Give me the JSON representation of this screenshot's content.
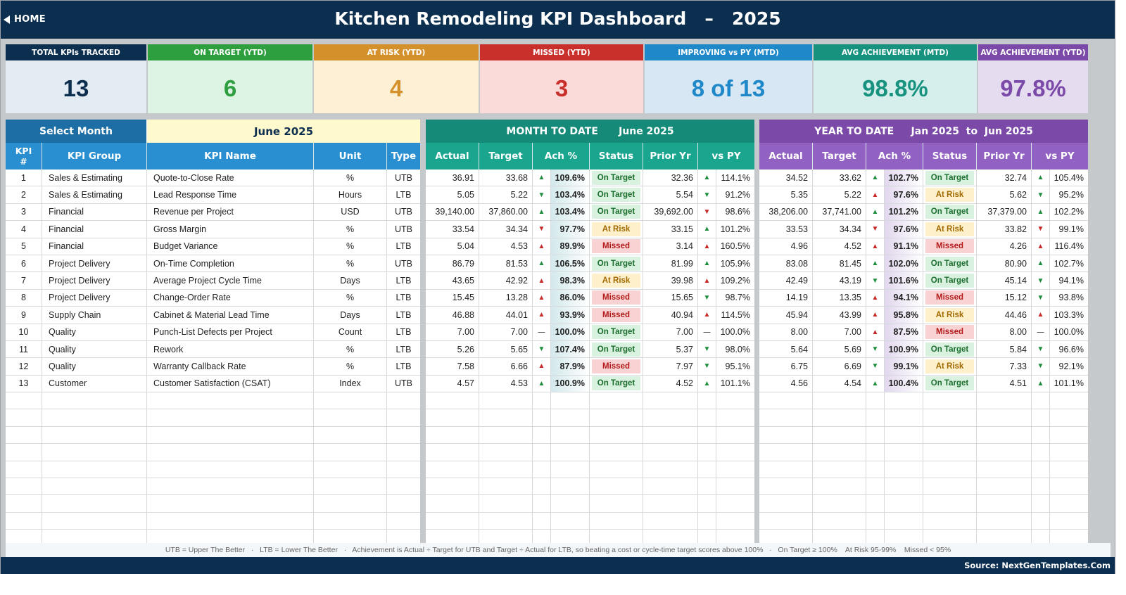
{
  "header": {
    "home_label": "HOME",
    "title": "Kitchen Remodeling KPI Dashboard   –   2025"
  },
  "cards": [
    {
      "label": "TOTAL KPIs TRACKED",
      "value": "13",
      "head": "#0d2f4f",
      "bg": "#e4ecf3",
      "fg": "#0d2f4f"
    },
    {
      "label": "ON TARGET (YTD)",
      "value": "6",
      "head": "#2e9f3e",
      "bg": "#ddf3e3",
      "fg": "#2e9f3e"
    },
    {
      "label": "AT RISK (YTD)",
      "value": "4",
      "head": "#d4902a",
      "bg": "#fdf0d4",
      "fg": "#d4902a"
    },
    {
      "label": "MISSED (YTD)",
      "value": "3",
      "head": "#c9302c",
      "bg": "#fbdada",
      "fg": "#c9302c"
    },
    {
      "label": "IMPROVING vs PY (MTD)",
      "value": "8 of 13",
      "head": "#1f88c9",
      "bg": "#d7e8f4",
      "fg": "#1f88c9"
    },
    {
      "label": "AVG ACHIEVEMENT (MTD)",
      "value": "98.8%",
      "head": "#16927f",
      "bg": "#d6efec",
      "fg": "#16927f"
    },
    {
      "label": "AVG ACHIEVEMENT (YTD)",
      "value": "97.8%",
      "head": "#7b4aa8",
      "bg": "#e6dcf0",
      "fg": "#7b4aa8"
    }
  ],
  "left": {
    "select_label": "Select Month",
    "month_value": "June 2025",
    "columns": [
      "KPI #",
      "KPI Group",
      "KPI Name",
      "Unit",
      "Type"
    ]
  },
  "mtd": {
    "title": "MONTH TO DATE      June 2025",
    "columns": [
      "Actual",
      "Target",
      "Ach %",
      "Status",
      "Prior Yr",
      "vs PY"
    ]
  },
  "ytd": {
    "title": "YEAR TO DATE     Jan 2025  to  Jun 2025",
    "columns": [
      "Actual",
      "Target",
      "Ach %",
      "Status",
      "Prior Yr",
      "vs PY"
    ]
  },
  "kpis": [
    {
      "n": "1",
      "group": "Sales & Estimating",
      "name": "Quote-to-Close Rate",
      "unit": "%",
      "type": "UTB",
      "mtd": {
        "actual": "36.91",
        "target": "33.68",
        "ach_dir": "up",
        "ach": "109.6%",
        "status": "On Target",
        "prior": "32.36",
        "vs_dir": "up",
        "vs": "114.1%"
      },
      "ytd": {
        "actual": "34.52",
        "target": "33.62",
        "ach_dir": "up",
        "ach": "102.7%",
        "status": "On Target",
        "prior": "32.74",
        "vs_dir": "up",
        "vs": "105.4%"
      }
    },
    {
      "n": "2",
      "group": "Sales & Estimating",
      "name": "Lead Response Time",
      "unit": "Hours",
      "type": "LTB",
      "mtd": {
        "actual": "5.05",
        "target": "5.22",
        "ach_dir": "down-good",
        "ach": "103.4%",
        "status": "On Target",
        "prior": "5.54",
        "vs_dir": "down-good",
        "vs": "91.2%"
      },
      "ytd": {
        "actual": "5.35",
        "target": "5.22",
        "ach_dir": "up-bad",
        "ach": "97.6%",
        "status": "At Risk",
        "prior": "5.62",
        "vs_dir": "down-good",
        "vs": "95.2%"
      }
    },
    {
      "n": "3",
      "group": "Financial",
      "name": "Revenue per Project",
      "unit": "USD",
      "type": "UTB",
      "mtd": {
        "actual": "39,140.00",
        "target": "37,860.00",
        "ach_dir": "up",
        "ach": "103.4%",
        "status": "On Target",
        "prior": "39,692.00",
        "vs_dir": "down-bad",
        "vs": "98.6%"
      },
      "ytd": {
        "actual": "38,206.00",
        "target": "37,741.00",
        "ach_dir": "up",
        "ach": "101.2%",
        "status": "On Target",
        "prior": "37,379.00",
        "vs_dir": "up",
        "vs": "102.2%"
      }
    },
    {
      "n": "4",
      "group": "Financial",
      "name": "Gross Margin",
      "unit": "%",
      "type": "UTB",
      "mtd": {
        "actual": "33.54",
        "target": "34.34",
        "ach_dir": "down-bad",
        "ach": "97.7%",
        "status": "At Risk",
        "prior": "33.15",
        "vs_dir": "up",
        "vs": "101.2%"
      },
      "ytd": {
        "actual": "33.53",
        "target": "34.34",
        "ach_dir": "down-bad",
        "ach": "97.6%",
        "status": "At Risk",
        "prior": "33.82",
        "vs_dir": "down-bad",
        "vs": "99.1%"
      }
    },
    {
      "n": "5",
      "group": "Financial",
      "name": "Budget Variance",
      "unit": "%",
      "type": "LTB",
      "mtd": {
        "actual": "5.04",
        "target": "4.53",
        "ach_dir": "up-bad",
        "ach": "89.9%",
        "status": "Missed",
        "prior": "3.14",
        "vs_dir": "up-bad",
        "vs": "160.5%"
      },
      "ytd": {
        "actual": "4.96",
        "target": "4.52",
        "ach_dir": "up-bad",
        "ach": "91.1%",
        "status": "Missed",
        "prior": "4.26",
        "vs_dir": "up-bad",
        "vs": "116.4%"
      }
    },
    {
      "n": "6",
      "group": "Project Delivery",
      "name": "On-Time Completion",
      "unit": "%",
      "type": "UTB",
      "mtd": {
        "actual": "86.79",
        "target": "81.53",
        "ach_dir": "up",
        "ach": "106.5%",
        "status": "On Target",
        "prior": "81.99",
        "vs_dir": "up",
        "vs": "105.9%"
      },
      "ytd": {
        "actual": "83.08",
        "target": "81.45",
        "ach_dir": "up",
        "ach": "102.0%",
        "status": "On Target",
        "prior": "80.90",
        "vs_dir": "up",
        "vs": "102.7%"
      }
    },
    {
      "n": "7",
      "group": "Project Delivery",
      "name": "Average Project Cycle Time",
      "unit": "Days",
      "type": "LTB",
      "mtd": {
        "actual": "43.65",
        "target": "42.92",
        "ach_dir": "up-bad",
        "ach": "98.3%",
        "status": "At Risk",
        "prior": "39.98",
        "vs_dir": "up-bad",
        "vs": "109.2%"
      },
      "ytd": {
        "actual": "42.49",
        "target": "43.19",
        "ach_dir": "down-good",
        "ach": "101.6%",
        "status": "On Target",
        "prior": "45.14",
        "vs_dir": "down-good",
        "vs": "94.1%"
      }
    },
    {
      "n": "8",
      "group": "Project Delivery",
      "name": "Change-Order Rate",
      "unit": "%",
      "type": "LTB",
      "mtd": {
        "actual": "15.45",
        "target": "13.28",
        "ach_dir": "up-bad",
        "ach": "86.0%",
        "status": "Missed",
        "prior": "15.65",
        "vs_dir": "down-good",
        "vs": "98.7%"
      },
      "ytd": {
        "actual": "14.19",
        "target": "13.35",
        "ach_dir": "up-bad",
        "ach": "94.1%",
        "status": "Missed",
        "prior": "15.12",
        "vs_dir": "down-good",
        "vs": "93.8%"
      }
    },
    {
      "n": "9",
      "group": "Supply Chain",
      "name": "Cabinet & Material Lead Time",
      "unit": "Days",
      "type": "LTB",
      "mtd": {
        "actual": "46.88",
        "target": "44.01",
        "ach_dir": "up-bad",
        "ach": "93.9%",
        "status": "Missed",
        "prior": "40.94",
        "vs_dir": "up-bad",
        "vs": "114.5%"
      },
      "ytd": {
        "actual": "45.94",
        "target": "43.99",
        "ach_dir": "up-bad",
        "ach": "95.8%",
        "status": "At Risk",
        "prior": "44.46",
        "vs_dir": "up-bad",
        "vs": "103.3%"
      }
    },
    {
      "n": "10",
      "group": "Quality",
      "name": "Punch-List Defects per Project",
      "unit": "Count",
      "type": "LTB",
      "mtd": {
        "actual": "7.00",
        "target": "7.00",
        "ach_dir": "flat",
        "ach": "100.0%",
        "status": "On Target",
        "prior": "7.00",
        "vs_dir": "flat",
        "vs": "100.0%"
      },
      "ytd": {
        "actual": "8.00",
        "target": "7.00",
        "ach_dir": "up-bad",
        "ach": "87.5%",
        "status": "Missed",
        "prior": "8.00",
        "vs_dir": "flat",
        "vs": "100.0%"
      }
    },
    {
      "n": "11",
      "group": "Quality",
      "name": "Rework",
      "unit": "%",
      "type": "LTB",
      "mtd": {
        "actual": "5.26",
        "target": "5.65",
        "ach_dir": "down-good",
        "ach": "107.4%",
        "status": "On Target",
        "prior": "5.37",
        "vs_dir": "down-good",
        "vs": "98.0%"
      },
      "ytd": {
        "actual": "5.64",
        "target": "5.69",
        "ach_dir": "down-good",
        "ach": "100.9%",
        "status": "On Target",
        "prior": "5.84",
        "vs_dir": "down-good",
        "vs": "96.6%"
      }
    },
    {
      "n": "12",
      "group": "Quality",
      "name": "Warranty Callback Rate",
      "unit": "%",
      "type": "LTB",
      "mtd": {
        "actual": "7.58",
        "target": "6.66",
        "ach_dir": "up-bad",
        "ach": "87.9%",
        "status": "Missed",
        "prior": "7.97",
        "vs_dir": "down-good",
        "vs": "95.1%"
      },
      "ytd": {
        "actual": "6.75",
        "target": "6.69",
        "ach_dir": "down-good",
        "ach": "99.1%",
        "status": "At Risk",
        "prior": "7.33",
        "vs_dir": "down-good",
        "vs": "92.1%"
      }
    },
    {
      "n": "13",
      "group": "Customer",
      "name": "Customer Satisfaction (CSAT)",
      "unit": "Index",
      "type": "UTB",
      "mtd": {
        "actual": "4.57",
        "target": "4.53",
        "ach_dir": "up",
        "ach": "100.9%",
        "status": "On Target",
        "prior": "4.52",
        "vs_dir": "up",
        "vs": "101.1%"
      },
      "ytd": {
        "actual": "4.56",
        "target": "4.54",
        "ach_dir": "up",
        "ach": "100.4%",
        "status": "On Target",
        "prior": "4.51",
        "vs_dir": "up",
        "vs": "101.1%"
      }
    }
  ],
  "footer": {
    "legend": "UTB = Upper The Better   ·   LTB = Lower The Better   ·   Achievement is Actual ÷ Target for UTB and Target ÷ Actual for LTB, so beating a cost or cycle-time target scores above 100%   ·   On Target ≥ 100%    At Risk 95-99%    Missed < 95%",
    "source": "Source: NextGenTemplates.Com"
  },
  "colors": {
    "navy": "#0d2f4f",
    "left_header": "#1c6ea4",
    "left_col_header": "#2a8fd0",
    "month_bg": "#fffacd",
    "mtd_header": "#158a78",
    "mtd_col_header": "#1aa58f",
    "ytd_header": "#7b4aa8",
    "ytd_col_header": "#9262c2"
  }
}
